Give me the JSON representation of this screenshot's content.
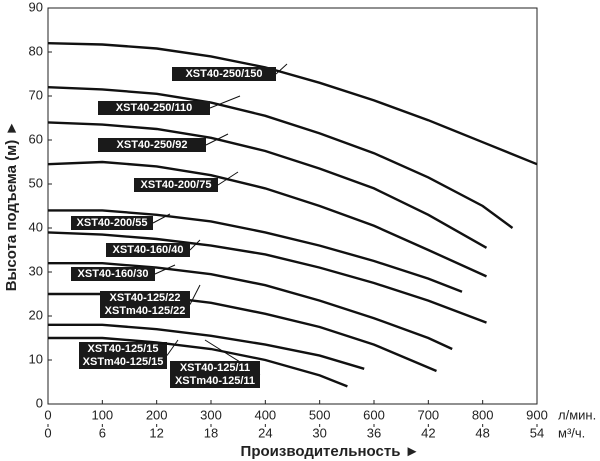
{
  "chart_data": {
    "type": "line",
    "xlabel": "Производительность ►",
    "ylabel": "Высота подъема (м) ►",
    "x_unit": "л/мин.",
    "x2_unit": "м³/ч.",
    "xlim": [
      0,
      900
    ],
    "xticks": [
      0,
      100,
      200,
      300,
      400,
      500,
      600,
      700,
      800,
      900
    ],
    "x2lim": [
      0,
      54
    ],
    "x2ticks": [
      0,
      6,
      12,
      18,
      24,
      30,
      36,
      42,
      48,
      54
    ],
    "ylim": [
      0,
      90
    ],
    "yticks": [
      0,
      10,
      20,
      30,
      40,
      50,
      60,
      70,
      80,
      90
    ],
    "series": [
      {
        "name": [
          "XST40-250/150"
        ],
        "color": "#111111",
        "x": [
          0,
          100,
          200,
          300,
          400,
          500,
          600,
          700,
          800,
          900
        ],
        "values": [
          82,
          81.7,
          80.8,
          79,
          76.5,
          73,
          69,
          64.5,
          59.5,
          54.5
        ]
      },
      {
        "name": [
          "XST40-250/110"
        ],
        "color": "#111111",
        "x": [
          0,
          100,
          200,
          300,
          400,
          500,
          600,
          700,
          800,
          855
        ],
        "values": [
          72,
          71.5,
          70.5,
          68.5,
          65.5,
          61.5,
          57,
          51.5,
          45,
          40
        ]
      },
      {
        "name": [
          "XST40-250/92"
        ],
        "color": "#111111",
        "x": [
          0,
          100,
          200,
          300,
          400,
          500,
          600,
          700,
          807
        ],
        "values": [
          64,
          63.5,
          62.5,
          60.5,
          57.5,
          53.5,
          49,
          43,
          35.5
        ]
      },
      {
        "name": [
          "XST40-200/75"
        ],
        "color": "#111111",
        "x": [
          0,
          100,
          200,
          300,
          400,
          500,
          600,
          700,
          807
        ],
        "values": [
          54.5,
          55,
          54,
          52,
          49,
          45,
          40.5,
          35,
          29
        ]
      },
      {
        "name": [
          "XST40-200/55"
        ],
        "color": "#111111",
        "x": [
          0,
          100,
          200,
          300,
          400,
          500,
          600,
          700,
          762
        ],
        "values": [
          44,
          44,
          43,
          41.5,
          39,
          36,
          32.5,
          28.5,
          25.5
        ]
      },
      {
        "name": [
          "XST40-160/40"
        ],
        "color": "#111111",
        "x": [
          0,
          100,
          200,
          300,
          400,
          500,
          600,
          700,
          807
        ],
        "values": [
          39,
          38.5,
          37.5,
          36,
          34,
          31,
          27.5,
          23.5,
          18.5
        ]
      },
      {
        "name": [
          "XST40-160/30"
        ],
        "color": "#111111",
        "x": [
          0,
          100,
          200,
          300,
          400,
          500,
          600,
          700,
          744
        ],
        "values": [
          32,
          32,
          31,
          29.5,
          27,
          23.5,
          19.5,
          15,
          12.5
        ]
      },
      {
        "name": [
          "XST40-125/22",
          "XSTm40-125/22"
        ],
        "color": "#111111",
        "x": [
          0,
          100,
          200,
          300,
          400,
          500,
          600,
          715
        ],
        "values": [
          25,
          25,
          24.5,
          23,
          20.5,
          17.5,
          13.5,
          7.5
        ]
      },
      {
        "name": [
          "XST40-125/15",
          "XSTm40-125/15"
        ],
        "color": "#111111",
        "x": [
          0,
          100,
          200,
          300,
          400,
          500,
          582
        ],
        "values": [
          18,
          18,
          17,
          15.5,
          13.5,
          11,
          8
        ]
      },
      {
        "name": [
          "XST40-125/11",
          "XSTm40-125/11"
        ],
        "color": "#111111",
        "x": [
          0,
          100,
          200,
          300,
          400,
          500,
          551
        ],
        "values": [
          15,
          15,
          14,
          12.5,
          10,
          6.5,
          4
        ]
      }
    ]
  }
}
